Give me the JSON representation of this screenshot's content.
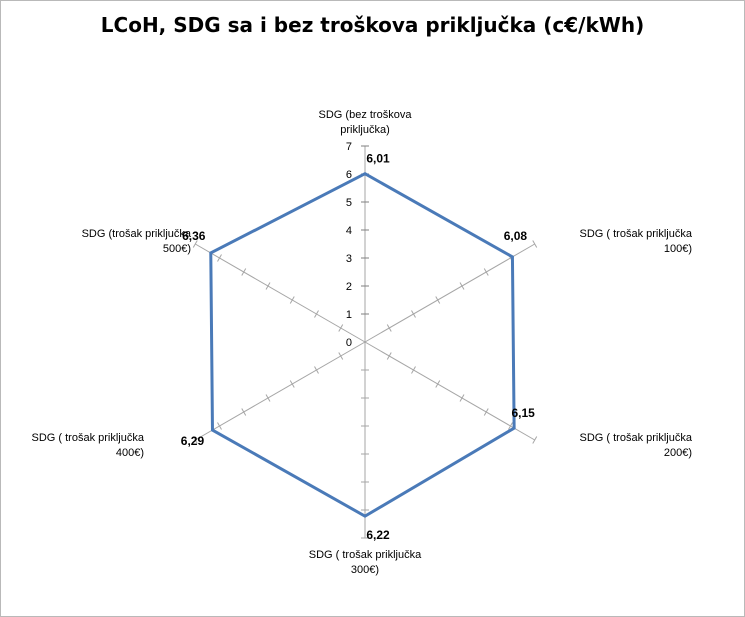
{
  "chart_data": {
    "type": "radar",
    "title": "LCoH, SDG sa i bez troškova priključka (c€/kWh)",
    "categories": [
      [
        "SDG (bez troškova",
        "priključka)"
      ],
      [
        "SDG ( trošak priključka",
        "100€)"
      ],
      [
        "SDG ( trošak priključka",
        "200€)"
      ],
      [
        "SDG ( trošak priključka",
        "300€)"
      ],
      [
        "SDG ( trošak priključka",
        "400€)"
      ],
      [
        "SDG (trošak  priključka",
        "500€)"
      ]
    ],
    "series": [
      {
        "values": [
          6.01,
          6.08,
          6.15,
          6.22,
          6.29,
          6.36
        ],
        "value_labels": [
          "6,01",
          "6,08",
          "6,15",
          "6,22",
          "6,29",
          "6,36"
        ],
        "color": "#4a7ab8"
      }
    ],
    "rlim": [
      0,
      7
    ],
    "ticks": [
      "0",
      "1",
      "2",
      "3",
      "4",
      "5",
      "6",
      "7"
    ],
    "axis_color": "#a6a6a6",
    "legend": "none"
  }
}
